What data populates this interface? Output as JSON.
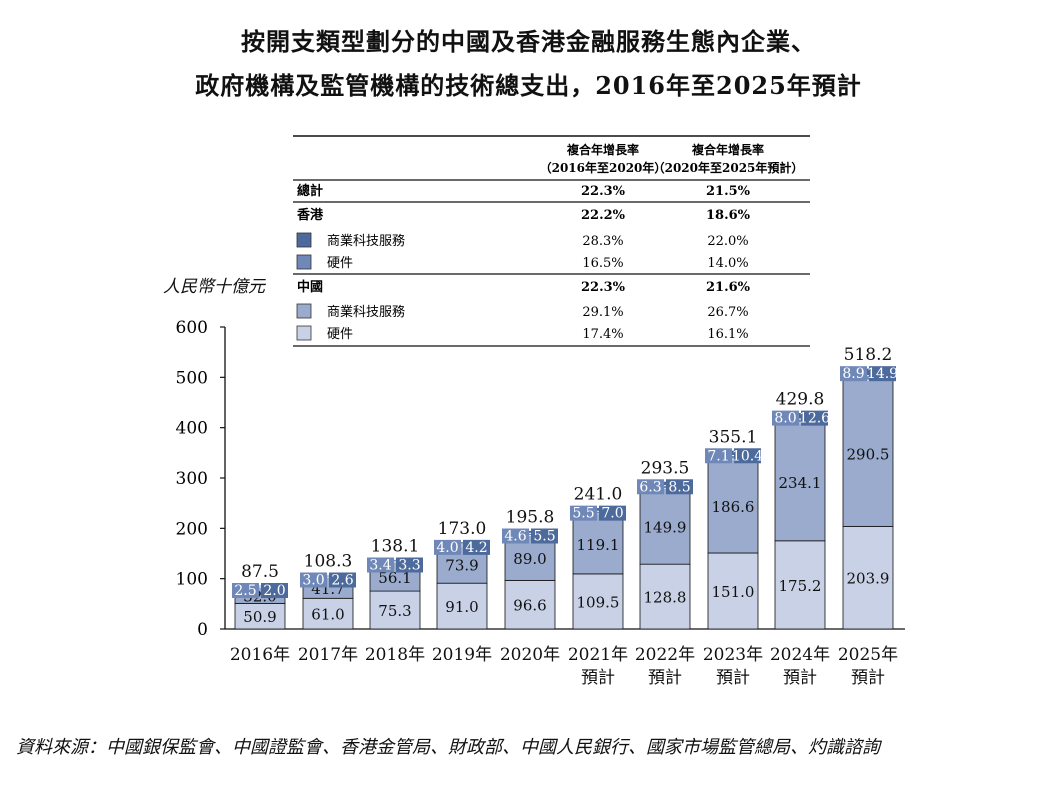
{
  "title_line1": "按開支類型劃分的中國及香港金融服務生態內企業、",
  "title_line2": "政府機構及監管機構的技術總支出，2016年至2025年預計",
  "unit_label": "人民幣十億元",
  "source": "資料來源：中國銀保監會、中國證監會、香港金管局、財政部、中國人民銀行、國家市場監管總局、灼識諮詢",
  "table": {
    "col1_header_a": "複合年增長率",
    "col1_header_b": "（2016年至2020年）",
    "col2_header_a": "複合年增長率",
    "col2_header_b": "（2020年至2025年預計）",
    "rows": [
      {
        "label": "總計",
        "cagr1": "22.3%",
        "cagr2": "21.5%",
        "bold": true,
        "swatch": null
      },
      {
        "label": "香港",
        "cagr1": "22.2%",
        "cagr2": "18.6%",
        "bold": true,
        "swatch": null
      },
      {
        "label": "商業科技服務",
        "cagr1": "28.3%",
        "cagr2": "22.0%",
        "bold": false,
        "swatch": "#4d6a9c"
      },
      {
        "label": "硬件",
        "cagr1": "16.5%",
        "cagr2": "14.0%",
        "bold": false,
        "swatch": "#6f88b8"
      },
      {
        "label": "中國",
        "cagr1": "22.3%",
        "cagr2": "21.6%",
        "bold": true,
        "swatch": null
      },
      {
        "label": "商業科技服務",
        "cagr1": "29.1%",
        "cagr2": "26.7%",
        "bold": false,
        "swatch": "#9aabcd"
      },
      {
        "label": "硬件",
        "cagr1": "17.4%",
        "cagr2": "16.1%",
        "bold": false,
        "swatch": "#c8d1e6"
      }
    ]
  },
  "chart_data": {
    "type": "bar",
    "stacked": true,
    "categories": [
      [
        "2016年"
      ],
      [
        "2017年"
      ],
      [
        "2018年"
      ],
      [
        "2019年"
      ],
      [
        "2020年"
      ],
      [
        "2021年",
        "預計"
      ],
      [
        "2022年",
        "預計"
      ],
      [
        "2023年",
        "預計"
      ],
      [
        "2024年",
        "預計"
      ],
      [
        "2025年",
        "預計"
      ]
    ],
    "ylim": [
      0,
      600
    ],
    "yticks": [
      0,
      100,
      200,
      300,
      400,
      500,
      600
    ],
    "totals": [
      "87.5",
      "108.3",
      "138.1",
      "173.0",
      "195.8",
      "241.0",
      "293.5",
      "355.1",
      "429.8",
      "518.2"
    ],
    "series": [
      {
        "name": "中國 硬件",
        "color": "#c8d1e6",
        "values": [
          50.9,
          61.0,
          75.3,
          91.0,
          96.6,
          109.5,
          128.8,
          151.0,
          175.2,
          203.9
        ],
        "labels": [
          "50.9",
          "61.0",
          "75.3",
          "91.0",
          "96.6",
          "109.5",
          "128.8",
          "151.0",
          "175.2",
          "203.9"
        ]
      },
      {
        "name": "中國 商業科技服務",
        "color": "#9aabcd",
        "values": [
          32.0,
          41.7,
          56.1,
          73.9,
          89.0,
          119.1,
          149.9,
          186.6,
          234.1,
          290.5
        ],
        "labels": [
          "32.0",
          "41.7",
          "56.1",
          "73.9",
          "89.0",
          "119.1",
          "149.9",
          "186.6",
          "234.1",
          "290.5"
        ]
      },
      {
        "name": "香港 硬件",
        "color": "#6f88b8",
        "values": [
          2.5,
          3.0,
          3.4,
          4.0,
          4.6,
          5.5,
          6.3,
          7.1,
          8.0,
          8.9
        ],
        "labels": [
          "2.5",
          "3.0",
          "3.4",
          "4.0",
          "4.6",
          "5.5",
          "6.3",
          "7.1",
          "8.0",
          "8.9"
        ]
      },
      {
        "name": "香港 商業科技服務",
        "color": "#4d6a9c",
        "values": [
          2.0,
          2.6,
          3.3,
          4.2,
          5.5,
          7.0,
          8.5,
          10.4,
          12.6,
          14.9
        ],
        "labels": [
          "2.0",
          "2.6",
          "3.3",
          "4.2",
          "5.5",
          "7.0",
          "8.5",
          "10.4",
          "12.6",
          "14.9"
        ]
      }
    ]
  }
}
